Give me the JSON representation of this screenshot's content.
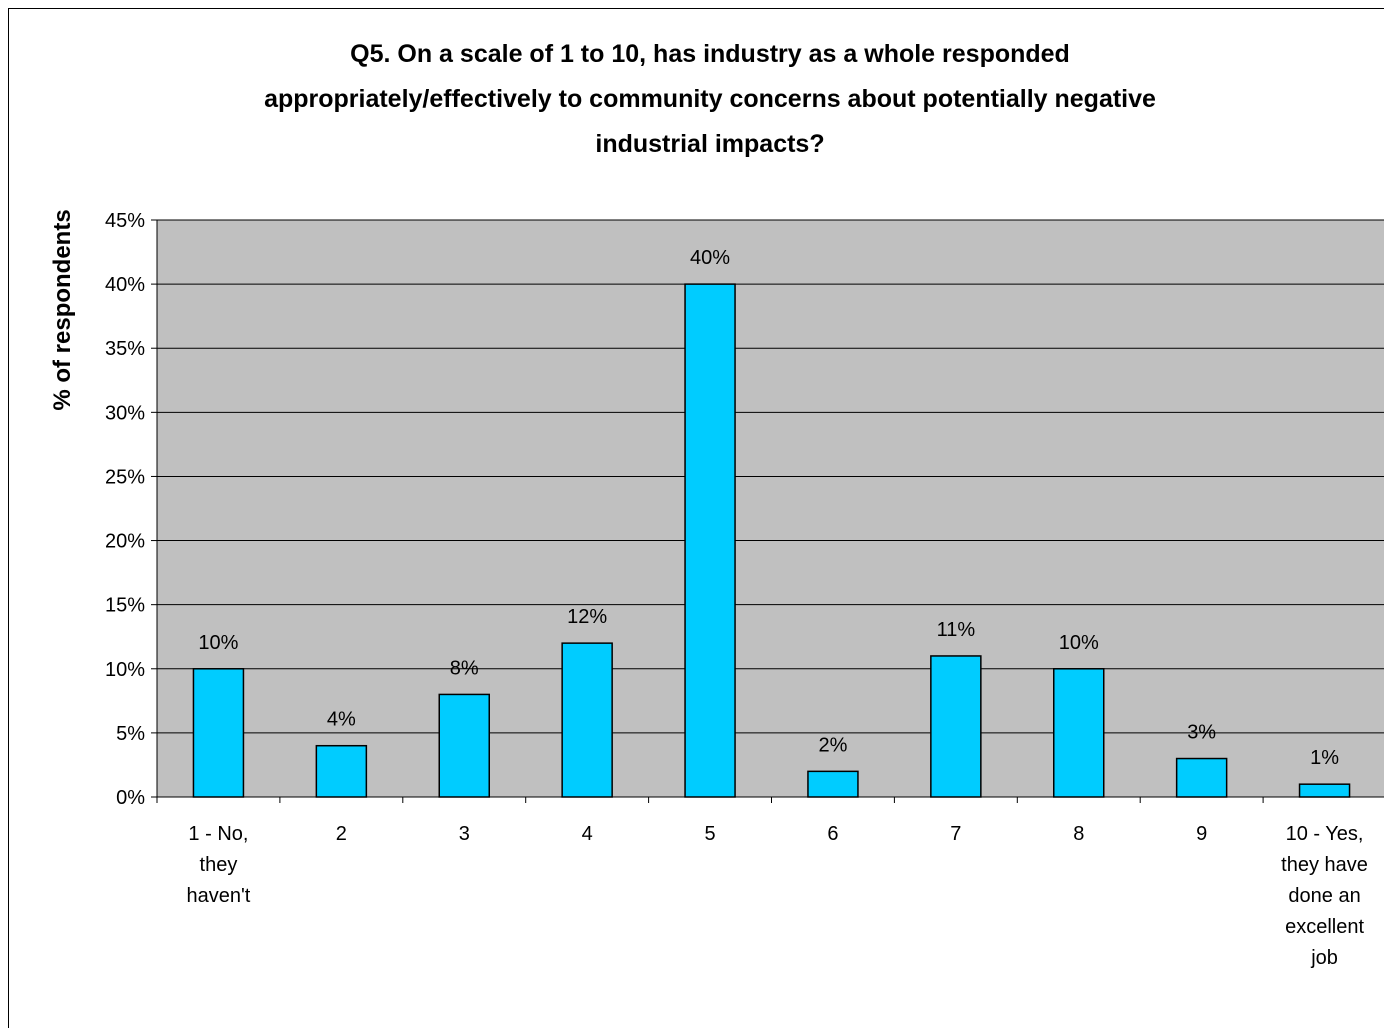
{
  "chart_data": {
    "type": "bar",
    "title_lines": [
      "Q5.  On a scale of 1 to 10, has industry as a whole responded",
      "appropriately/effectively to community concerns about potentially negative",
      "industrial impacts?"
    ],
    "xlabel": "",
    "ylabel": "% of respondents",
    "categories": [
      [
        "1 - No,",
        "they",
        "haven't"
      ],
      [
        "2"
      ],
      [
        "3"
      ],
      [
        "4"
      ],
      [
        "5"
      ],
      [
        "6"
      ],
      [
        "7"
      ],
      [
        "8"
      ],
      [
        "9"
      ],
      [
        "10 - Yes,",
        "they have",
        "done an",
        "excellent",
        "job"
      ]
    ],
    "values": [
      10,
      4,
      8,
      12,
      40,
      2,
      11,
      10,
      3,
      1
    ],
    "value_labels": [
      "10%",
      "4%",
      "8%",
      "12%",
      "40%",
      "2%",
      "11%",
      "10%",
      "3%",
      "1%"
    ],
    "ylim": [
      0,
      45
    ],
    "yticks": [
      0,
      5,
      10,
      15,
      20,
      25,
      30,
      35,
      40,
      45
    ],
    "ytick_labels": [
      "0%",
      "5%",
      "10%",
      "15%",
      "20%",
      "25%",
      "30%",
      "35%",
      "40%",
      "45%"
    ],
    "grid": true,
    "legend": "none",
    "colors": {
      "bar": "#00CCFF",
      "plot_background": "#C0C0C0"
    }
  }
}
